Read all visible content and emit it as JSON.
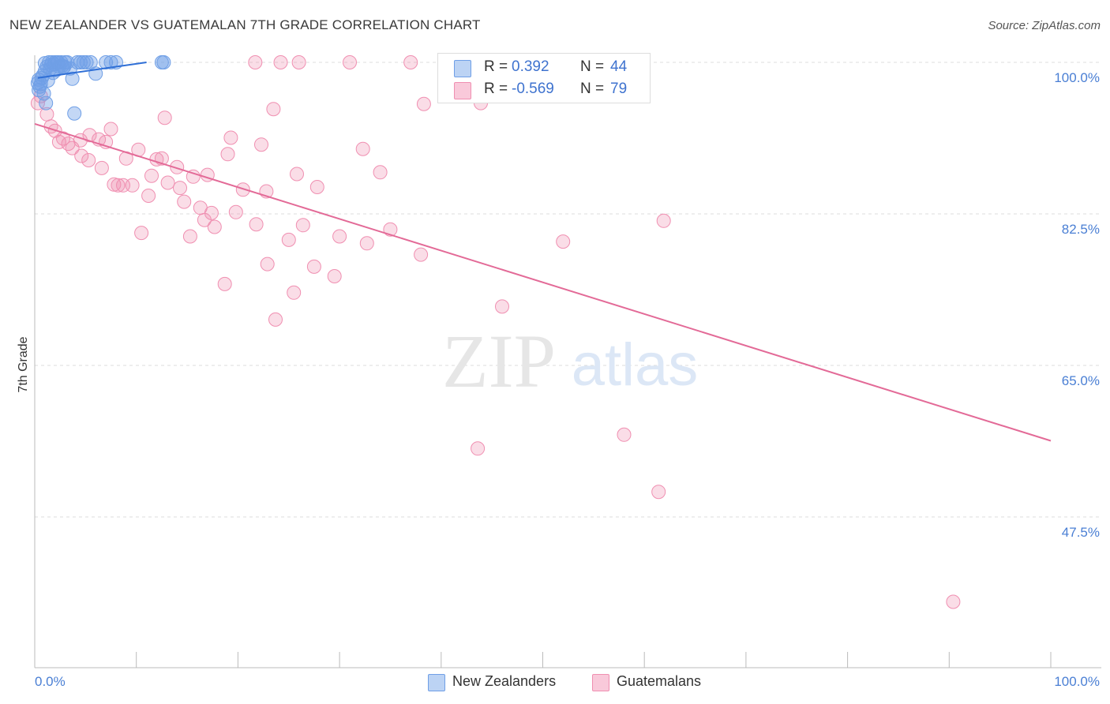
{
  "title": "NEW ZEALANDER VS GUATEMALAN 7TH GRADE CORRELATION CHART",
  "source": "Source: ZipAtlas.com",
  "watermark": {
    "zip": "ZIP",
    "atlas": "atlas"
  },
  "legend_top": [
    {
      "name": "New Zealanders",
      "r_label": "R =",
      "r_value": "0.392",
      "n_label": "N =",
      "n_value": "44",
      "color": "#6f9fe6"
    },
    {
      "name": "Guatemalans",
      "r_label": "R =",
      "r_value": "-0.569",
      "n_label": "N =",
      "n_value": "79",
      "color": "#f08fb1"
    }
  ],
  "legend_bottom": {
    "items": [
      "New Zealanders",
      "Guatemalans"
    ]
  },
  "chart_data": {
    "type": "scatter",
    "xlabel": "",
    "ylabel": "7th Grade",
    "xlim": [
      0,
      100
    ],
    "ylim": [
      32.5,
      100
    ],
    "x_tick_labels": [
      "0.0%",
      "100.0%"
    ],
    "y_ticks": [
      {
        "value": 100.0,
        "label": "100.0%"
      },
      {
        "value": 82.5,
        "label": "82.5%"
      },
      {
        "value": 65.0,
        "label": "65.0%"
      },
      {
        "value": 47.5,
        "label": "47.5%"
      }
    ],
    "grid": true,
    "legend_position": "top-center",
    "colors": {
      "blue": "#6f9fe6",
      "blue_line": "#2f6fd6",
      "pink": "#f08fb1",
      "pink_line": "#e36a97"
    },
    "series": [
      {
        "name": "New Zealanders",
        "color": "#6f9fe6",
        "points": [
          [
            0.4,
            98.0
          ],
          [
            0.6,
            97.5
          ],
          [
            0.8,
            98.5
          ],
          [
            1.0,
            99.0
          ],
          [
            1.2,
            99.5
          ],
          [
            1.4,
            100
          ],
          [
            1.5,
            99.2
          ],
          [
            1.7,
            100
          ],
          [
            1.8,
            98.8
          ],
          [
            2.0,
            100
          ],
          [
            2.2,
            100
          ],
          [
            2.4,
            99.5
          ],
          [
            2.6,
            100
          ],
          [
            2.8,
            99.4
          ],
          [
            3.0,
            100
          ],
          [
            3.2,
            100
          ],
          [
            3.5,
            99.3
          ],
          [
            3.7,
            98.1
          ],
          [
            4.2,
            100
          ],
          [
            4.5,
            100
          ],
          [
            4.8,
            100
          ],
          [
            5.5,
            100
          ],
          [
            6.0,
            98.7
          ],
          [
            7.0,
            100
          ],
          [
            7.5,
            100
          ],
          [
            8.0,
            100
          ],
          [
            12.5,
            100
          ],
          [
            12.7,
            100
          ],
          [
            0.5,
            97.2
          ],
          [
            1.1,
            95.3
          ],
          [
            0.9,
            96.4
          ],
          [
            1.3,
            97.9
          ],
          [
            2.1,
            99.1
          ],
          [
            2.7,
            99.6
          ],
          [
            0.3,
            97.6
          ],
          [
            1.6,
            99.7
          ],
          [
            3.9,
            94.1
          ],
          [
            0.7,
            98.2
          ],
          [
            1.9,
            99.8
          ],
          [
            5.1,
            100
          ],
          [
            2.3,
            100
          ],
          [
            0.4,
            96.8
          ],
          [
            1.0,
            99.9
          ],
          [
            2.9,
            99.5
          ]
        ],
        "trend": [
          [
            0.3,
            98.2
          ],
          [
            11.0,
            100.0
          ]
        ]
      },
      {
        "name": "Guatemalans",
        "color": "#f08fb1",
        "points": [
          [
            0.3,
            95.3
          ],
          [
            0.6,
            96.1
          ],
          [
            1.2,
            94.0
          ],
          [
            1.6,
            92.6
          ],
          [
            2.0,
            92.1
          ],
          [
            2.4,
            90.8
          ],
          [
            2.8,
            91.2
          ],
          [
            3.3,
            90.6
          ],
          [
            3.7,
            90.1
          ],
          [
            4.5,
            91.0
          ],
          [
            4.6,
            89.2
          ],
          [
            5.3,
            88.7
          ],
          [
            5.4,
            91.6
          ],
          [
            6.3,
            91.1
          ],
          [
            6.6,
            87.8
          ],
          [
            7.0,
            90.8
          ],
          [
            7.5,
            92.3
          ],
          [
            7.8,
            85.9
          ],
          [
            8.2,
            85.8
          ],
          [
            8.7,
            85.8
          ],
          [
            9.0,
            88.9
          ],
          [
            9.6,
            85.8
          ],
          [
            10.2,
            89.9
          ],
          [
            10.5,
            80.3
          ],
          [
            11.2,
            84.6
          ],
          [
            11.5,
            86.9
          ],
          [
            12.0,
            88.8
          ],
          [
            12.5,
            88.9
          ],
          [
            12.8,
            93.6
          ],
          [
            13.1,
            86.1
          ],
          [
            14.0,
            87.9
          ],
          [
            14.3,
            85.5
          ],
          [
            14.7,
            83.9
          ],
          [
            15.3,
            79.9
          ],
          [
            15.6,
            86.8
          ],
          [
            16.3,
            83.2
          ],
          [
            16.7,
            81.8
          ],
          [
            17.0,
            87.0
          ],
          [
            17.4,
            82.6
          ],
          [
            17.7,
            81.0
          ],
          [
            18.7,
            74.4
          ],
          [
            19.0,
            89.4
          ],
          [
            19.3,
            91.3
          ],
          [
            19.8,
            82.7
          ],
          [
            20.5,
            85.3
          ],
          [
            21.8,
            81.3
          ],
          [
            22.3,
            90.5
          ],
          [
            22.8,
            85.1
          ],
          [
            22.9,
            76.7
          ],
          [
            23.5,
            94.6
          ],
          [
            23.7,
            70.3
          ],
          [
            25.0,
            79.5
          ],
          [
            25.5,
            73.4
          ],
          [
            25.8,
            87.1
          ],
          [
            26.4,
            81.2
          ],
          [
            27.5,
            76.4
          ],
          [
            27.8,
            85.6
          ],
          [
            29.5,
            75.3
          ],
          [
            30.0,
            79.9
          ],
          [
            32.3,
            90.0
          ],
          [
            32.7,
            79.1
          ],
          [
            34.0,
            87.3
          ],
          [
            35.0,
            80.7
          ],
          [
            38.0,
            77.8
          ],
          [
            38.3,
            95.2
          ],
          [
            43.6,
            55.4
          ],
          [
            43.9,
            95.3
          ],
          [
            46.0,
            71.8
          ],
          [
            52.0,
            79.3
          ],
          [
            58.0,
            57.0
          ],
          [
            61.4,
            50.4
          ],
          [
            61.9,
            81.7
          ],
          [
            21.7,
            100
          ],
          [
            24.2,
            100
          ],
          [
            26.0,
            100
          ],
          [
            31.0,
            100
          ],
          [
            37.0,
            100
          ],
          [
            59.0,
            100
          ],
          [
            90.4,
            37.7
          ]
        ],
        "trend": [
          [
            0.0,
            92.9
          ],
          [
            100.0,
            56.3
          ]
        ]
      }
    ]
  }
}
